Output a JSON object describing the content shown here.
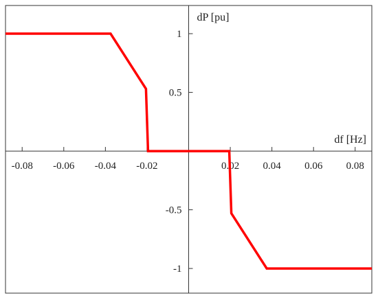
{
  "chart_data": {
    "type": "line",
    "xlabel": "df [Hz]",
    "ylabel": "dP [pu]",
    "xlim": [
      -0.088,
      0.088
    ],
    "ylim": [
      -1.21,
      1.24
    ],
    "grid": false,
    "line_color": "#ff0000",
    "x_ticks": [
      {
        "value": -0.08,
        "label": "-0.08"
      },
      {
        "value": -0.06,
        "label": "-0.06"
      },
      {
        "value": -0.04,
        "label": "-0.04"
      },
      {
        "value": -0.02,
        "label": "-0.02"
      },
      {
        "value": 0.02,
        "label": "0.02"
      },
      {
        "value": 0.04,
        "label": "0.04"
      },
      {
        "value": 0.06,
        "label": "0.06"
      },
      {
        "value": 0.08,
        "label": "0.08"
      }
    ],
    "y_ticks": [
      {
        "value": 1,
        "label": "1"
      },
      {
        "value": 0.5,
        "label": "0.5"
      },
      {
        "value": -0.5,
        "label": "-0.5"
      },
      {
        "value": -1,
        "label": "-1"
      }
    ],
    "series": [
      {
        "x": [
          -0.088,
          -0.0375,
          -0.0205,
          -0.0195,
          0.0195,
          0.0205,
          0.0375,
          0.088
        ],
        "y": [
          1,
          1,
          0.53,
          0,
          0,
          -0.53,
          -1,
          -1
        ]
      }
    ]
  }
}
